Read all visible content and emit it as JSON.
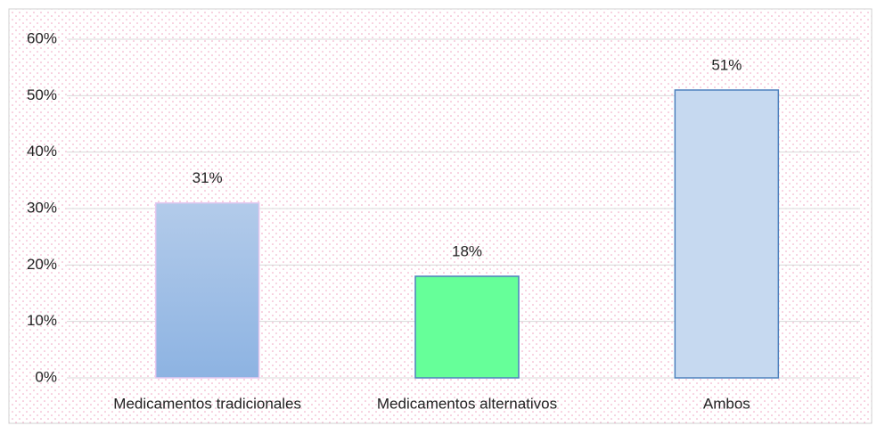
{
  "chart_data": {
    "type": "bar",
    "categories": [
      "Medicamentos tradicionales",
      "Medicamentos alternativos",
      "Ambos"
    ],
    "values": [
      31,
      18,
      51
    ],
    "value_labels": [
      "31%",
      "18%",
      "51%"
    ],
    "colors": [
      "#a4c0e6",
      "#66ff99",
      "#c6d9f0"
    ],
    "ylim": [
      0,
      60
    ],
    "yticks": [
      {
        "value": 0,
        "label": "0%"
      },
      {
        "value": 10,
        "label": "10%"
      },
      {
        "value": 20,
        "label": "20%"
      },
      {
        "value": 30,
        "label": "30%"
      },
      {
        "value": 40,
        "label": "40%"
      },
      {
        "value": 50,
        "label": "50%"
      },
      {
        "value": 60,
        "label": "60%"
      }
    ],
    "grid": true
  }
}
